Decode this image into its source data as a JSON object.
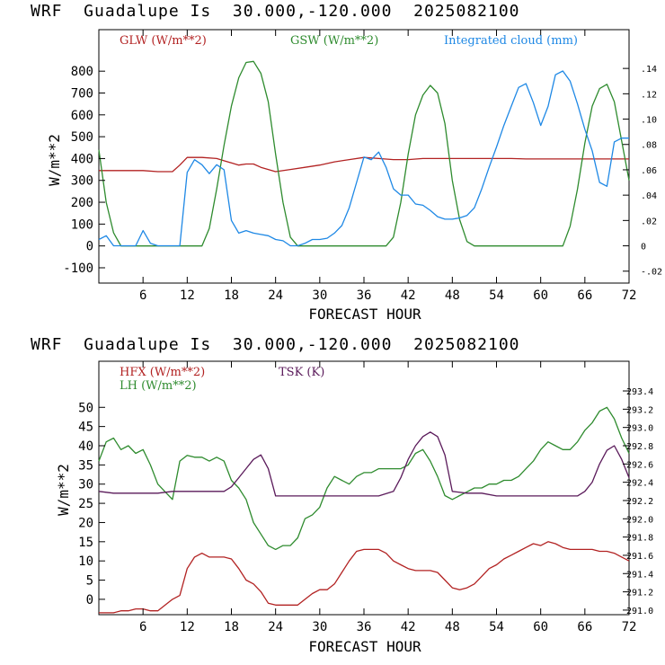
{
  "charts": [
    {
      "title": "WRF  Guadalupe Is  30.000,-120.000  2025082100",
      "xlabel": "FORECAST HOUR",
      "ylabel": "W/m**2",
      "legend": [
        {
          "text": "GLW (W/m**2)",
          "color": "#b22222"
        },
        {
          "text": "GSW (W/m**2)",
          "color": "#2e8b2e"
        },
        {
          "text": "Integrated cloud (mm)",
          "color": "#1e88e5"
        }
      ]
    },
    {
      "title": "WRF  Guadalupe Is  30.000,-120.000  2025082100",
      "xlabel": "FORECAST HOUR",
      "ylabel": "W/m**2",
      "legend": [
        {
          "text": "HFX (W/m**2)",
          "color": "#b22222"
        },
        {
          "text": "LH  (W/m**2)",
          "color": "#2e8b2e"
        },
        {
          "text": "TSK (K)",
          "color": "#5a1a5a"
        }
      ]
    }
  ],
  "chart_data": [
    {
      "type": "line",
      "title": "WRF  Guadalupe Is  30.000,-120.000  2025082100",
      "xlabel": "FORECAST HOUR",
      "ylabel": "W/m**2",
      "xlim": [
        0,
        72
      ],
      "xticks": [
        6,
        12,
        18,
        24,
        30,
        36,
        42,
        48,
        54,
        60,
        66,
        72
      ],
      "ylim": [
        -170,
        990
      ],
      "yticks": [
        -100,
        0,
        100,
        200,
        300,
        400,
        500,
        600,
        700,
        800
      ],
      "y2lim": [
        -0.0294,
        0.1706
      ],
      "y2ticks": [
        -0.02,
        0,
        0.02,
        0.04,
        0.06,
        0.08,
        0.1,
        0.12,
        0.14
      ],
      "y2ticklabels": [
        "-.02",
        "0",
        ".02",
        ".04",
        ".06",
        ".08",
        ".10",
        ".12",
        ".14"
      ],
      "grid": false,
      "legend_position": "top",
      "series": [
        {
          "name": "GLW (W/m**2)",
          "axis": "left",
          "color": "#b22222",
          "x": [
            0,
            3,
            6,
            8,
            9,
            10,
            11,
            12,
            14,
            16,
            17,
            18,
            19,
            20,
            21,
            22,
            24,
            26,
            28,
            30,
            32,
            34,
            36,
            38,
            40,
            42,
            44,
            46,
            48,
            50,
            52,
            54,
            56,
            58,
            60,
            62,
            64,
            66,
            68,
            70,
            72
          ],
          "y": [
            345,
            345,
            345,
            340,
            340,
            340,
            370,
            405,
            405,
            400,
            390,
            380,
            370,
            375,
            375,
            360,
            340,
            350,
            360,
            370,
            385,
            395,
            405,
            400,
            395,
            395,
            400,
            400,
            400,
            400,
            400,
            400,
            400,
            398,
            398,
            398,
            398,
            398,
            398,
            398,
            398
          ]
        },
        {
          "name": "GSW (W/m**2)",
          "axis": "left",
          "color": "#2e8b2e",
          "x": [
            0,
            1,
            2,
            3,
            4,
            5,
            6,
            7,
            8,
            9,
            10,
            11,
            12,
            13,
            14,
            15,
            16,
            17,
            18,
            19,
            20,
            21,
            22,
            23,
            24,
            25,
            26,
            27,
            30,
            33,
            36,
            37,
            38,
            39,
            40,
            41,
            42,
            43,
            44,
            45,
            46,
            47,
            48,
            49,
            50,
            51,
            52,
            54,
            56,
            58,
            60,
            61,
            62,
            63,
            64,
            65,
            66,
            67,
            68,
            69,
            70,
            71,
            72
          ],
          "y": [
            440,
            200,
            60,
            0,
            0,
            0,
            0,
            0,
            0,
            0,
            0,
            0,
            0,
            0,
            0,
            80,
            260,
            460,
            640,
            770,
            840,
            845,
            790,
            660,
            420,
            200,
            40,
            0,
            0,
            0,
            0,
            0,
            0,
            0,
            40,
            200,
            420,
            600,
            690,
            735,
            700,
            560,
            300,
            120,
            20,
            0,
            0,
            0,
            0,
            0,
            0,
            0,
            0,
            0,
            90,
            260,
            470,
            640,
            720,
            740,
            660,
            480,
            300
          ]
        },
        {
          "name": "Integrated cloud (mm)",
          "axis": "right",
          "color": "#1e88e5",
          "x": [
            0,
            1,
            2,
            3,
            4,
            5,
            6,
            7,
            8,
            9,
            10,
            11,
            12,
            13,
            14,
            15,
            16,
            17,
            18,
            19,
            20,
            21,
            22,
            23,
            24,
            25,
            26,
            27,
            28,
            29,
            30,
            31,
            32,
            33,
            34,
            35,
            36,
            37,
            38,
            39,
            40,
            41,
            42,
            43,
            44,
            45,
            46,
            47,
            48,
            49,
            50,
            51,
            52,
            53,
            54,
            55,
            56,
            57,
            58,
            59,
            60,
            61,
            62,
            63,
            64,
            65,
            66,
            67,
            68,
            69,
            70,
            71,
            72
          ],
          "y": [
            0.005,
            0.008,
            0.0,
            0.0,
            0.0,
            0.0,
            0.012,
            0.002,
            0.0,
            0.0,
            0.0,
            0.0,
            0.058,
            0.068,
            0.064,
            0.057,
            0.064,
            0.06,
            0.02,
            0.01,
            0.012,
            0.01,
            0.009,
            0.008,
            0.005,
            0.004,
            0.0,
            0.0,
            0.002,
            0.005,
            0.005,
            0.006,
            0.01,
            0.016,
            0.03,
            0.05,
            0.07,
            0.068,
            0.074,
            0.062,
            0.045,
            0.04,
            0.04,
            0.033,
            0.032,
            0.028,
            0.023,
            0.021,
            0.021,
            0.022,
            0.024,
            0.03,
            0.045,
            0.062,
            0.078,
            0.095,
            0.11,
            0.125,
            0.128,
            0.113,
            0.095,
            0.11,
            0.135,
            0.138,
            0.13,
            0.112,
            0.092,
            0.075,
            0.05,
            0.047,
            0.082,
            0.085,
            0.085
          ]
        }
      ]
    },
    {
      "type": "line",
      "title": "WRF  Guadalupe Is  30.000,-120.000  2025082100",
      "xlabel": "FORECAST HOUR",
      "ylabel": "W/m**2",
      "xlim": [
        0,
        72
      ],
      "xticks": [
        6,
        12,
        18,
        24,
        30,
        36,
        42,
        48,
        54,
        60,
        66,
        72
      ],
      "ylim": [
        -4,
        62
      ],
      "yticks": [
        0,
        5,
        10,
        15,
        20,
        25,
        30,
        35,
        40,
        45,
        50
      ],
      "y2lim": [
        290.95,
        293.725
      ],
      "y2ticks": [
        291.0,
        291.2,
        291.4,
        291.6,
        291.8,
        292.0,
        292.2,
        292.4,
        292.6,
        292.8,
        293.0,
        293.2,
        293.4
      ],
      "y2ticklabels": [
        "291.0",
        "291.2",
        "291.4",
        "291.6",
        "291.8",
        "292.0",
        "292.2",
        "292.4",
        "292.6",
        "292.8",
        "293.0",
        "293.2",
        "293.4"
      ],
      "grid": false,
      "legend_position": "top-left",
      "series": [
        {
          "name": "HFX (W/m**2)",
          "axis": "left",
          "color": "#b22222",
          "x": [
            0,
            2,
            3,
            4,
            5,
            6,
            7,
            8,
            9,
            10,
            11,
            12,
            13,
            14,
            15,
            16,
            17,
            18,
            19,
            20,
            21,
            22,
            23,
            24,
            25,
            26,
            27,
            28,
            29,
            30,
            31,
            32,
            33,
            34,
            35,
            36,
            37,
            38,
            39,
            40,
            41,
            42,
            43,
            44,
            45,
            46,
            47,
            48,
            49,
            50,
            51,
            52,
            53,
            54,
            55,
            56,
            57,
            58,
            59,
            60,
            61,
            62,
            63,
            64,
            65,
            66,
            67,
            68,
            69,
            70,
            71,
            72
          ],
          "y": [
            -3.5,
            -3.5,
            -3,
            -3,
            -2.5,
            -2.5,
            -3,
            -3,
            -1.5,
            0,
            1,
            8,
            11,
            12,
            11,
            11,
            11,
            10.5,
            8,
            5,
            4,
            2,
            -1,
            -1.5,
            -1.5,
            -1.5,
            -1.5,
            0,
            1.5,
            2.5,
            2.5,
            4,
            7,
            10,
            12.5,
            13,
            13,
            13,
            12,
            10,
            9,
            8,
            7.5,
            7.5,
            7.5,
            7,
            5,
            3,
            2.5,
            3,
            4,
            6,
            8,
            9,
            10.5,
            11.5,
            12.5,
            13.5,
            14.5,
            14,
            15,
            14.5,
            13.5,
            13,
            13,
            13,
            13,
            12.5,
            12.5,
            12,
            11,
            10
          ]
        },
        {
          "name": "LH  (W/m**2)",
          "axis": "left",
          "color": "#2e8b2e",
          "x": [
            0,
            1,
            2,
            3,
            4,
            5,
            6,
            7,
            8,
            9,
            10,
            11,
            12,
            13,
            14,
            15,
            16,
            17,
            18,
            19,
            20,
            21,
            22,
            23,
            24,
            25,
            26,
            27,
            28,
            29,
            30,
            31,
            32,
            33,
            34,
            35,
            36,
            37,
            38,
            39,
            40,
            41,
            42,
            43,
            44,
            45,
            46,
            47,
            48,
            49,
            50,
            51,
            52,
            53,
            54,
            55,
            56,
            57,
            58,
            59,
            60,
            61,
            62,
            63,
            64,
            65,
            66,
            67,
            68,
            69,
            70,
            71,
            72
          ],
          "y": [
            36,
            41,
            42,
            39,
            40,
            38,
            39,
            35,
            30,
            28,
            26,
            36,
            37.5,
            37,
            37,
            36,
            37,
            36,
            31,
            29,
            26,
            20,
            17,
            14,
            13,
            14,
            14,
            16,
            21,
            22,
            24,
            29,
            32,
            31,
            30,
            32,
            33,
            33,
            34,
            34,
            34,
            34,
            35,
            38,
            39,
            36,
            32,
            27,
            26,
            27,
            28,
            29,
            29,
            30,
            30,
            31,
            31,
            32,
            34,
            36,
            39,
            41,
            40,
            39,
            39,
            41,
            44,
            46,
            49,
            50,
            47,
            42,
            38
          ]
        },
        {
          "name": "TSK (K)",
          "axis": "right",
          "color": "#5a1a5a",
          "x": [
            0,
            2,
            4,
            6,
            8,
            10,
            12,
            14,
            16,
            17,
            18,
            19,
            20,
            21,
            22,
            23,
            24,
            25,
            26,
            28,
            30,
            32,
            34,
            36,
            38,
            40,
            41,
            42,
            43,
            44,
            45,
            46,
            47,
            48,
            50,
            52,
            54,
            56,
            58,
            60,
            62,
            64,
            65,
            66,
            67,
            68,
            69,
            70,
            71,
            72
          ],
          "y": [
            292.3,
            292.28,
            292.28,
            292.28,
            292.28,
            292.3,
            292.3,
            292.3,
            292.3,
            292.3,
            292.35,
            292.45,
            292.55,
            292.65,
            292.7,
            292.55,
            292.25,
            292.25,
            292.25,
            292.25,
            292.25,
            292.25,
            292.25,
            292.25,
            292.25,
            292.3,
            292.45,
            292.65,
            292.8,
            292.9,
            292.95,
            292.9,
            292.7,
            292.3,
            292.28,
            292.28,
            292.25,
            292.25,
            292.25,
            292.25,
            292.25,
            292.25,
            292.25,
            292.3,
            292.4,
            292.6,
            292.75,
            292.8,
            292.65,
            292.45
          ]
        }
      ]
    }
  ]
}
